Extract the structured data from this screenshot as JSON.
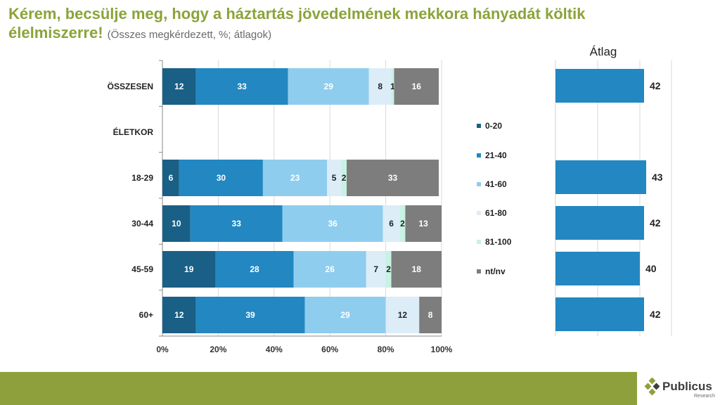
{
  "header": {
    "title": "Kérem, becsülje meg, hogy a háztartás jövedelmének mekkora hányadát költik élelmiszerre!",
    "subtitle": "(Összes megkérdezett, %; átlagok)"
  },
  "chart_data": [
    {
      "type": "bar",
      "orientation": "horizontal",
      "stacked": true,
      "title": "",
      "xlabel": "",
      "ylabel": "",
      "xlim": [
        0,
        100
      ],
      "x_ticks": [
        "0%",
        "20%",
        "40%",
        "60%",
        "80%",
        "100%"
      ],
      "categories": [
        "ÖSSZESEN",
        "ÉLETKOR",
        "18-29",
        "30-44",
        "45-59",
        "60+"
      ],
      "series": [
        {
          "name": "0-20",
          "color": "#1a5f86",
          "values": [
            12,
            null,
            6,
            10,
            19,
            12
          ]
        },
        {
          "name": "21-40",
          "color": "#2387c2",
          "values": [
            33,
            null,
            30,
            33,
            28,
            39
          ]
        },
        {
          "name": "41-60",
          "color": "#8fcdee",
          "values": [
            29,
            null,
            23,
            36,
            26,
            29
          ]
        },
        {
          "name": "61-80",
          "color": "#dcedf8",
          "values": [
            8,
            null,
            5,
            6,
            7,
            12
          ]
        },
        {
          "name": "81-100",
          "color": "#c8f2e4",
          "values": [
            1,
            null,
            2,
            2,
            2,
            0
          ]
        },
        {
          "name": "nt/nv",
          "color": "#7d7d7d",
          "values": [
            16,
            null,
            33,
            13,
            18,
            8
          ]
        }
      ],
      "legend_position": "right"
    },
    {
      "type": "bar",
      "orientation": "horizontal",
      "title": "Átlag",
      "categories": [
        "ÖSSZESEN",
        "ÉLETKOR",
        "18-29",
        "30-44",
        "45-59",
        "60+"
      ],
      "values": [
        42,
        null,
        43,
        42,
        40,
        42
      ],
      "color": "#2387c2",
      "xlim": [
        0,
        55
      ]
    }
  ],
  "footer": {
    "logo_text": "Publicus",
    "logo_subtext": "Research",
    "bar_color": "#8ea03c"
  }
}
